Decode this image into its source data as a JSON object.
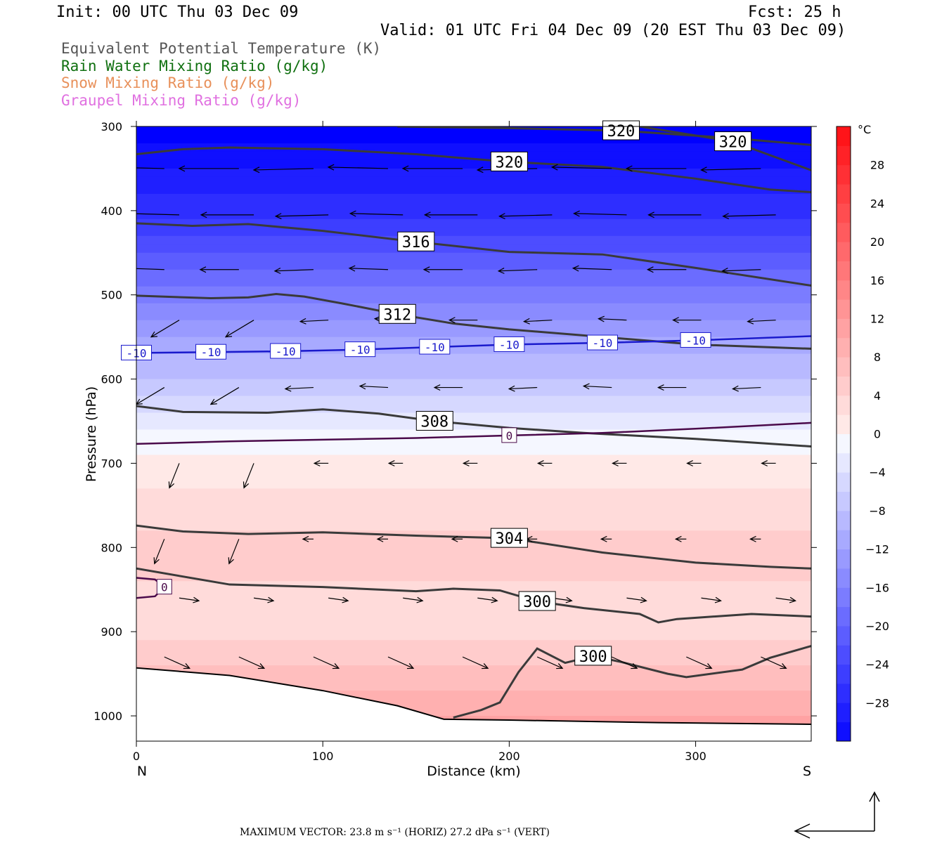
{
  "header": {
    "init": "Init: 00 UTC Thu 03 Dec 09",
    "fcst": "Fcst:   25 h",
    "valid": "Valid: 01 UTC Fri 04 Dec 09 (20 EST Thu 03 Dec 09)"
  },
  "legend": [
    {
      "text": "Equivalent Potential Temperature (K)",
      "color": "#555555"
    },
    {
      "text": "Rain Water Mixing Ratio (g/kg)",
      "color": "#107010"
    },
    {
      "text": "Snow Mixing Ratio (g/kg)",
      "color": "#e8905a"
    },
    {
      "text": "Graupel Mixing Ratio (g/kg)",
      "color": "#e070e0"
    }
  ],
  "footer": {
    "max_vector": "MAXIMUM VECTOR:  23.8 m s⁻¹ (HORIZ)          27.2 dPa s⁻¹ (VERT)"
  },
  "chart_data": {
    "type": "heatmap",
    "title": "",
    "xlabel": "Distance (km)",
    "ylabel": "Pressure (hPa)",
    "xlim": [
      0,
      362
    ],
    "ylim": [
      1030,
      300
    ],
    "x_ticks": [
      0,
      100,
      200,
      300
    ],
    "y_ticks": [
      300,
      400,
      500,
      600,
      700,
      800,
      900,
      1000
    ],
    "x_end_labels": {
      "left": "N",
      "right": "S"
    },
    "colorbar": {
      "unit": "°C",
      "range": [
        -32,
        32
      ],
      "labels": [
        28,
        24,
        20,
        16,
        12,
        8,
        4,
        0,
        -4,
        -8,
        -12,
        -16,
        -20,
        -24,
        -28
      ]
    },
    "temperature_profile": [
      {
        "p": 300,
        "t": -32
      },
      {
        "p": 400,
        "t": -26
      },
      {
        "p": 500,
        "t": -16
      },
      {
        "p": 560,
        "t": -10
      },
      {
        "p": 620,
        "t": -5
      },
      {
        "p": 670,
        "t": 0
      },
      {
        "p": 750,
        "t": 4
      },
      {
        "p": 820,
        "t": 6
      },
      {
        "p": 880,
        "t": 3
      },
      {
        "p": 950,
        "t": 8
      },
      {
        "p": 1000,
        "t": 11
      }
    ],
    "theta_e_contours": [
      {
        "label": "320",
        "points": [
          [
            0,
            333
          ],
          [
            25,
            327
          ],
          [
            50,
            325
          ],
          [
            100,
            327
          ],
          [
            150,
            333
          ],
          [
            200,
            342
          ],
          [
            250,
            348
          ],
          [
            300,
            362
          ],
          [
            340,
            375
          ],
          [
            362,
            378
          ]
        ]
      },
      {
        "label": "320",
        "points": [
          [
            140,
            300
          ],
          [
            200,
            302
          ],
          [
            260,
            305
          ],
          [
            320,
            314
          ],
          [
            362,
            322
          ]
        ]
      },
      {
        "label": "320",
        "points": [
          [
            270,
            300
          ],
          [
            320,
            318
          ],
          [
            362,
            352
          ]
        ]
      },
      {
        "label": "316",
        "points": [
          [
            0,
            415
          ],
          [
            30,
            418
          ],
          [
            60,
            416
          ],
          [
            100,
            424
          ],
          [
            150,
            437
          ],
          [
            200,
            449
          ],
          [
            250,
            452
          ],
          [
            300,
            468
          ],
          [
            362,
            489
          ]
        ]
      },
      {
        "label": "312",
        "points": [
          [
            0,
            501
          ],
          [
            40,
            504
          ],
          [
            60,
            503
          ],
          [
            75,
            499
          ],
          [
            90,
            502
          ],
          [
            110,
            510
          ],
          [
            140,
            523
          ],
          [
            170,
            534
          ],
          [
            200,
            541
          ],
          [
            250,
            550
          ],
          [
            300,
            559
          ],
          [
            362,
            564
          ]
        ]
      },
      {
        "label": "308",
        "points": [
          [
            0,
            632
          ],
          [
            25,
            639
          ],
          [
            70,
            640
          ],
          [
            100,
            636
          ],
          [
            130,
            641
          ],
          [
            160,
            650
          ],
          [
            200,
            658
          ],
          [
            240,
            664
          ],
          [
            300,
            671
          ],
          [
            362,
            680
          ]
        ]
      },
      {
        "label": "304",
        "points": [
          [
            0,
            774
          ],
          [
            25,
            781
          ],
          [
            60,
            784
          ],
          [
            100,
            782
          ],
          [
            150,
            786
          ],
          [
            200,
            789
          ],
          [
            250,
            806
          ],
          [
            300,
            818
          ],
          [
            340,
            823
          ],
          [
            362,
            825
          ]
        ]
      },
      {
        "label": "300",
        "points": [
          [
            0,
            825
          ],
          [
            50,
            844
          ],
          [
            100,
            847
          ],
          [
            150,
            852
          ],
          [
            170,
            849
          ],
          [
            195,
            851
          ],
          [
            215,
            864
          ],
          [
            240,
            872
          ],
          [
            270,
            879
          ],
          [
            280,
            889
          ],
          [
            290,
            885
          ],
          [
            330,
            879
          ],
          [
            362,
            882
          ]
        ]
      },
      {
        "label": "300",
        "points": [
          [
            170,
            1002
          ],
          [
            185,
            993
          ],
          [
            195,
            984
          ],
          [
            205,
            948
          ],
          [
            215,
            920
          ],
          [
            230,
            937
          ],
          [
            245,
            929
          ],
          [
            260,
            936
          ],
          [
            285,
            950
          ],
          [
            295,
            954
          ],
          [
            325,
            945
          ],
          [
            340,
            931
          ],
          [
            362,
            917
          ]
        ]
      }
    ],
    "temperature_contours": [
      {
        "label": "-10",
        "points": [
          [
            0,
            569
          ],
          [
            40,
            568
          ],
          [
            80,
            567
          ],
          [
            120,
            565
          ],
          [
            160,
            562
          ],
          [
            200,
            559
          ],
          [
            250,
            557
          ],
          [
            300,
            554
          ],
          [
            362,
            549
          ]
        ]
      },
      {
        "label": "0",
        "points": [
          [
            0,
            677
          ],
          [
            50,
            674
          ],
          [
            100,
            672
          ],
          [
            150,
            670
          ],
          [
            200,
            667
          ],
          [
            250,
            664
          ],
          [
            300,
            659
          ],
          [
            362,
            652
          ]
        ]
      },
      {
        "label": "0",
        "points": [
          [
            0,
            836
          ],
          [
            10,
            838
          ],
          [
            15,
            847
          ],
          [
            10,
            858
          ],
          [
            0,
            860
          ]
        ]
      }
    ],
    "terrain": [
      [
        0,
        943
      ],
      [
        50,
        952
      ],
      [
        100,
        970
      ],
      [
        140,
        988
      ],
      [
        165,
        1004
      ],
      [
        200,
        1005
      ],
      [
        280,
        1008
      ],
      [
        362,
        1010
      ]
    ],
    "vectors_note": "wind barbs shown as arrows; easterly-to-westerly flow aloft, weak flow below 600 hPa"
  }
}
